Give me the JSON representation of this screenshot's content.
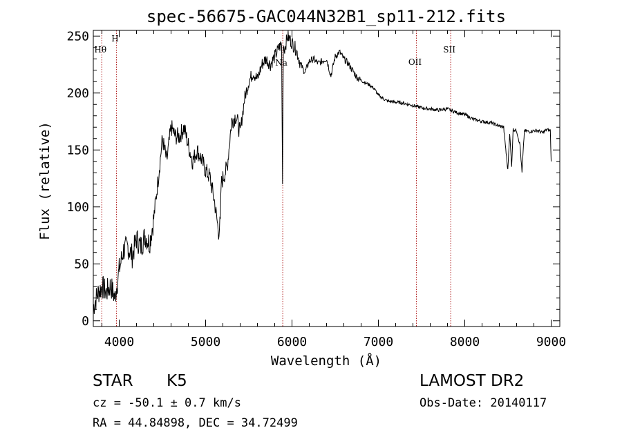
{
  "chart_data": {
    "type": "line",
    "title": "spec-56675-GAC044N32B1_sp11-212.fits",
    "xlabel": "Wavelength (Å)",
    "ylabel": "Flux (relative)",
    "xlim": [
      3700,
      9100
    ],
    "ylim": [
      -5,
      255
    ],
    "xticks": [
      4000,
      5000,
      6000,
      7000,
      8000,
      9000
    ],
    "yticks": [
      0,
      50,
      100,
      150,
      200,
      250
    ],
    "grid": false,
    "line_color": "#000000",
    "marker_color": "#b22222",
    "series": [
      {
        "x": [
          3700,
          3750,
          3800,
          3850,
          3900,
          3950,
          4000,
          4050,
          4100,
          4150,
          4200,
          4250,
          4300,
          4350,
          4400,
          4450,
          4500,
          4550,
          4600,
          4650,
          4700,
          4750,
          4800,
          4850,
          4900,
          4950,
          5000,
          5050,
          5100,
          5150,
          5170,
          5180,
          5200,
          5250,
          5300,
          5350,
          5400,
          5450,
          5500,
          5550,
          5600,
          5650,
          5700,
          5750,
          5800,
          5850,
          5880,
          5890,
          5893,
          5896,
          5900,
          5910,
          5950,
          6000,
          6050,
          6100,
          6150,
          6200,
          6250,
          6300,
          6350,
          6400,
          6450,
          6500,
          6550,
          6600,
          6650,
          6700,
          6750,
          6800,
          6850,
          6900,
          6950,
          7000,
          7100,
          7200,
          7300,
          7400,
          7500,
          7600,
          7700,
          7800,
          7900,
          8000,
          8100,
          8200,
          8300,
          8400,
          8450,
          8498,
          8520,
          8542,
          8560,
          8600,
          8640,
          8662,
          8690,
          8750,
          8800,
          8850,
          8900,
          8950,
          8990,
          9000
        ],
        "y": [
          12,
          24,
          30,
          25,
          31,
          20,
          45,
          62,
          65,
          57,
          72,
          65,
          75,
          68,
          90,
          124,
          160,
          140,
          170,
          162,
          162,
          170,
          154,
          140,
          150,
          142,
          132,
          126,
          106,
          78,
          86,
          120,
          125,
          135,
          175,
          180,
          165,
          195,
          210,
          218,
          212,
          225,
          230,
          225,
          232,
          240,
          243,
          120,
          160,
          200,
          245,
          238,
          250,
          244,
          238,
          225,
          218,
          228,
          230,
          226,
          228,
          230,
          215,
          232,
          236,
          230,
          226,
          220,
          214,
          211,
          209,
          207,
          204,
          198,
          193,
          192,
          191,
          189,
          187,
          186,
          185,
          186,
          183,
          181,
          177,
          175,
          174,
          171,
          170,
          132,
          165,
          135,
          168,
          167,
          154,
          130,
          167,
          166,
          167,
          167,
          165,
          168,
          167,
          140
        ]
      }
    ],
    "line_markers": [
      {
        "label": "Hθ",
        "x": 3798
      },
      {
        "label": "H",
        "x": 3968
      },
      {
        "label": "Na",
        "x": 5893
      },
      {
        "label": "OII",
        "x": 7440
      },
      {
        "label": "SII",
        "x": 7837
      }
    ]
  },
  "info": {
    "class": "STAR",
    "subclass": "K5",
    "survey": "LAMOST DR2",
    "cz": "cz = -50.1 ± 0.7 km/s",
    "obs_date": "Obs-Date: 20140117",
    "radec": "RA =  44.84898, DEC =  34.72499"
  }
}
